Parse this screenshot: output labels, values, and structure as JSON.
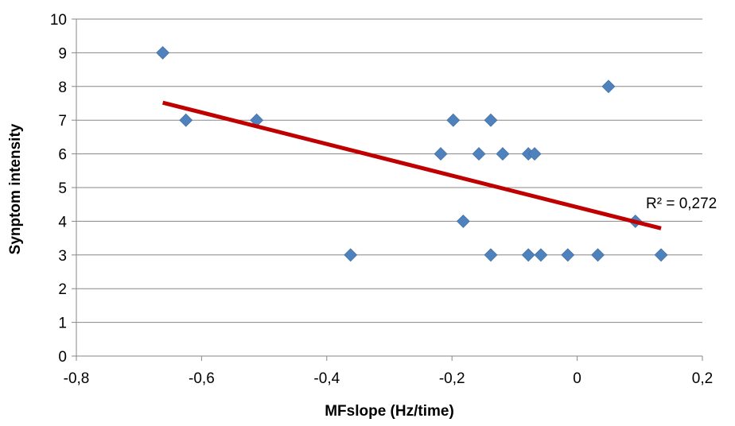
{
  "chart_data": {
    "type": "scatter",
    "title": "",
    "xlabel": "MFslope (Hz/time)",
    "ylabel": "Synptom intensity",
    "xlim": [
      -0.8,
      0.2
    ],
    "ylim": [
      0,
      10
    ],
    "x_ticks": [
      -0.8,
      -0.6,
      -0.4,
      -0.2,
      0,
      0.2
    ],
    "x_tick_labels": [
      "-0,8",
      "-0,6",
      "-0,4",
      "-0,2",
      "0",
      "0,2"
    ],
    "y_ticks": [
      0,
      1,
      2,
      3,
      4,
      5,
      6,
      7,
      8,
      9,
      10
    ],
    "y_tick_labels": [
      "0",
      "1",
      "2",
      "3",
      "4",
      "5",
      "6",
      "7",
      "8",
      "9",
      "10"
    ],
    "grid": "horizontal",
    "legend": "none",
    "series": [
      {
        "points": [
          {
            "x": -0.662,
            "y": 9
          },
          {
            "x": -0.625,
            "y": 7
          },
          {
            "x": -0.512,
            "y": 7
          },
          {
            "x": -0.362,
            "y": 3
          },
          {
            "x": -0.218,
            "y": 6
          },
          {
            "x": -0.198,
            "y": 7
          },
          {
            "x": -0.182,
            "y": 4
          },
          {
            "x": -0.157,
            "y": 6
          },
          {
            "x": -0.138,
            "y": 7
          },
          {
            "x": -0.138,
            "y": 3
          },
          {
            "x": -0.119,
            "y": 6
          },
          {
            "x": -0.078,
            "y": 6
          },
          {
            "x": -0.078,
            "y": 3
          },
          {
            "x": -0.068,
            "y": 6
          },
          {
            "x": -0.058,
            "y": 3
          },
          {
            "x": -0.015,
            "y": 3
          },
          {
            "x": 0.033,
            "y": 3
          },
          {
            "x": 0.05,
            "y": 8
          },
          {
            "x": 0.093,
            "y": 4
          },
          {
            "x": 0.134,
            "y": 3
          }
        ]
      }
    ],
    "trendline": {
      "type": "linear",
      "x_start": -0.662,
      "y_start": 7.52,
      "x_end": 0.134,
      "y_end": 3.79,
      "label": "R² = 0,272"
    },
    "colors": {
      "marker": "#4F81BD",
      "trendline": "#C00000",
      "gridline": "#878787",
      "axis": "#878787"
    }
  }
}
